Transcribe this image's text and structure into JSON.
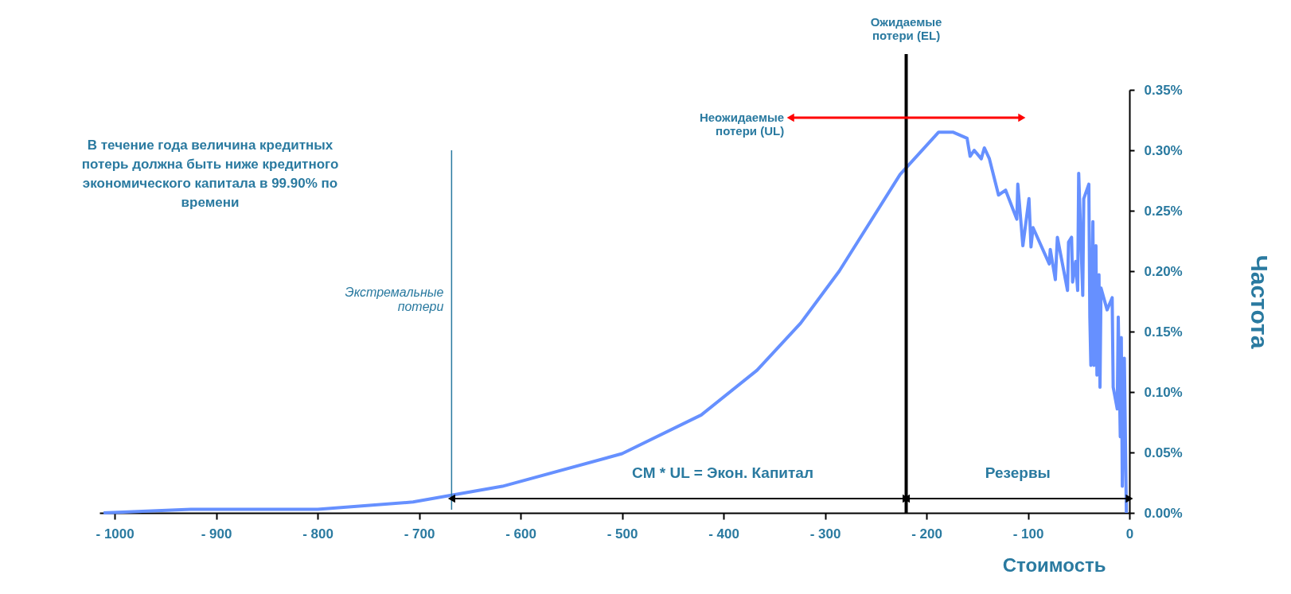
{
  "chart_data": {
    "type": "line",
    "xlabel": "Стоимость",
    "ylabel": "Частота",
    "x": [
      -1011,
      -925,
      -800,
      -706,
      -618,
      -500,
      -422,
      -367,
      -324,
      -286,
      -226,
      -188,
      -174,
      -160,
      -157,
      -153,
      -146,
      -143,
      -138,
      -129,
      -122,
      -111,
      -110,
      -105,
      -99,
      -97,
      -95,
      -79,
      -78,
      -73,
      -71,
      -61,
      -60,
      -57,
      -56,
      -53,
      -51,
      -50,
      -46,
      -45,
      -40,
      -39,
      -38,
      -36,
      -35,
      -33,
      -32,
      -30,
      -29,
      -28,
      -22,
      -17,
      -16,
      -12,
      -11,
      -9,
      -8,
      -7,
      -5,
      -3
    ],
    "series": [
      {
        "color": "#6690ff",
        "values": [
          0,
          0.003,
          0.003,
          0.009,
          0.022,
          0.049,
          0.081,
          0.118,
          0.157,
          0.2,
          0.28,
          0.315,
          0.315,
          0.31,
          0.295,
          0.3,
          0.293,
          0.302,
          0.293,
          0.263,
          0.267,
          0.243,
          0.272,
          0.221,
          0.26,
          0.22,
          0.236,
          0.206,
          0.218,
          0.193,
          0.228,
          0.184,
          0.224,
          0.228,
          0.191,
          0.208,
          0.184,
          0.281,
          0.18,
          0.26,
          0.272,
          0.162,
          0.122,
          0.241,
          0.122,
          0.221,
          0.114,
          0.197,
          0.104,
          0.186,
          0.168,
          0.178,
          0.104,
          0.086,
          0.162,
          0.063,
          0.145,
          0.022,
          0.128,
          0
        ]
      }
    ],
    "xlim": [
      -1015,
      0
    ],
    "xticks": [
      {
        "value": -1000,
        "label": "- 1000"
      },
      {
        "value": -900,
        "label": "- 900"
      },
      {
        "value": -800,
        "label": "- 800"
      },
      {
        "value": -700,
        "label": "- 700"
      },
      {
        "value": -600,
        "label": "- 600"
      },
      {
        "value": -500,
        "label": "- 500"
      },
      {
        "value": -400,
        "label": "- 400"
      },
      {
        "value": -300,
        "label": "- 300"
      },
      {
        "value": -200,
        "label": "- 200"
      },
      {
        "value": -100,
        "label": "- 100"
      },
      0
    ],
    "ylim": [
      0,
      0.35
    ],
    "yticks": [
      {
        "value": 0,
        "label": "0.00%"
      },
      {
        "value": 0.05,
        "label": "0.05%"
      },
      {
        "value": 0.1,
        "label": "0.10%"
      },
      {
        "value": 0.15,
        "label": "0.15%"
      },
      {
        "value": 0.2,
        "label": "0.20%"
      },
      {
        "value": 0.25,
        "label": "0.25%"
      },
      {
        "value": 0.3,
        "label": "0.30%"
      },
      {
        "value": 0.35,
        "label": "0.35%"
      }
    ],
    "ref_lines": [
      {
        "axis": "x",
        "value": -220,
        "label": "Ожидаемые\nпотери (EL)",
        "color": "#000000"
      },
      {
        "axis": "x",
        "value": -668,
        "label": "Экстремальные\nпотери",
        "color": "#2a7aa0"
      }
    ],
    "annotations": [
      "В течение года величина кредитных\nпотерь должна быть ниже кредитного\nэкономического капитала  в  99.90% по\nвремени",
      {
        "text": "Неожидаемые\nпотери (UL)",
        "x": -334,
        "y": 0.327
      },
      "CM * UL = Экон. Капитал",
      "Резервы"
    ],
    "grid": false,
    "legend": false,
    "marker": "none",
    "line_style": "solid"
  }
}
